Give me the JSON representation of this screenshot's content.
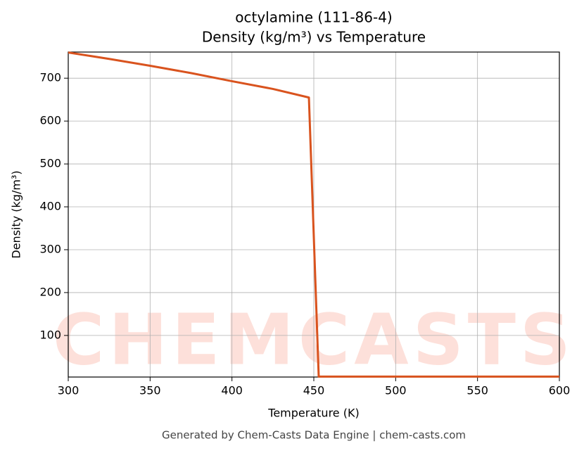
{
  "chart_data": {
    "type": "line",
    "title": "octylamine (111-86-4)",
    "subtitle": "Density (kg/m³) vs Temperature",
    "x_label": "Temperature (K)",
    "y_label": "Density (kg/m³)",
    "watermark": "CHEMCASTS",
    "footer": "Generated by Chem-Casts Data Engine | chem-casts.com",
    "x": [
      300,
      325,
      350,
      375,
      400,
      425,
      447,
      453,
      500,
      550,
      600
    ],
    "series": [
      {
        "name": "Density",
        "color": "#d9531e",
        "values": [
          760,
          745,
          729,
          712,
          693,
          675,
          655,
          4,
          4,
          4,
          4
        ]
      }
    ],
    "xlim": [
      300,
      600
    ],
    "xticks": [
      300,
      350,
      400,
      450,
      500,
      550,
      600
    ],
    "ylim": [
      3,
      761
    ],
    "yticks": [
      100,
      200,
      300,
      400,
      500,
      600,
      700
    ],
    "grid": true
  }
}
